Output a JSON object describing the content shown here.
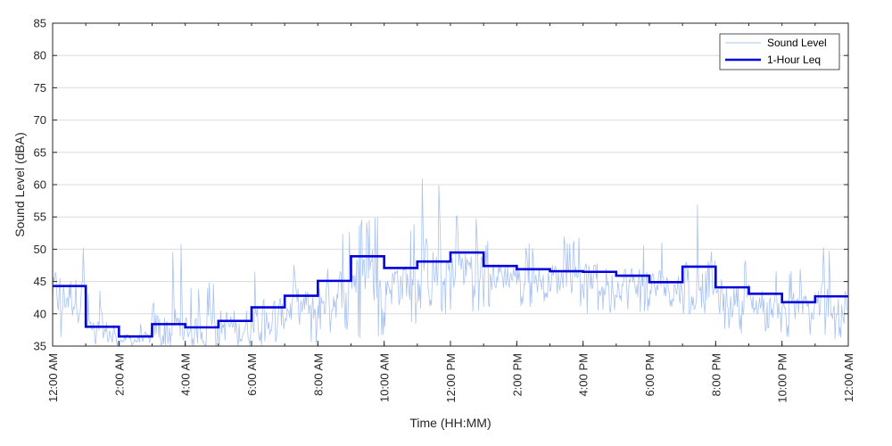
{
  "chart_data": {
    "type": "line",
    "title": "",
    "xlabel": "Time (HH:MM)",
    "ylabel": "Sound Level (dBA)",
    "xlim_hours": [
      0,
      24
    ],
    "ylim": [
      35,
      85
    ],
    "y_ticks": [
      35,
      40,
      45,
      50,
      55,
      60,
      65,
      70,
      75,
      80,
      85
    ],
    "x_ticks": [
      {
        "hour": 0,
        "label": "12:00 AM"
      },
      {
        "hour": 2,
        "label": "2:00 AM"
      },
      {
        "hour": 4,
        "label": "4:00 AM"
      },
      {
        "hour": 6,
        "label": "6:00 AM"
      },
      {
        "hour": 8,
        "label": "8:00 AM"
      },
      {
        "hour": 10,
        "label": "10:00 AM"
      },
      {
        "hour": 12,
        "label": "12:00 PM"
      },
      {
        "hour": 14,
        "label": "2:00 PM"
      },
      {
        "hour": 16,
        "label": "4:00 PM"
      },
      {
        "hour": 18,
        "label": "6:00 PM"
      },
      {
        "hour": 20,
        "label": "8:00 PM"
      },
      {
        "hour": 22,
        "label": "10:00 PM"
      },
      {
        "hour": 24,
        "label": "12:00 AM"
      }
    ],
    "grid": "horizontal",
    "legend_position": "top-right",
    "series": [
      {
        "name": "Sound Level",
        "color": "#a9c3f0",
        "style": "thin",
        "hour_ranges": [
          {
            "min": 36,
            "max": 51,
            "mean": 43
          },
          {
            "min": 35,
            "max": 44,
            "mean": 37
          },
          {
            "min": 35,
            "max": 39,
            "mean": 36
          },
          {
            "min": 35,
            "max": 51,
            "mean": 37.5
          },
          {
            "min": 35,
            "max": 45,
            "mean": 37.5
          },
          {
            "min": 35,
            "max": 47,
            "mean": 38
          },
          {
            "min": 35,
            "max": 47,
            "mean": 39.5
          },
          {
            "min": 35,
            "max": 48,
            "mean": 41
          },
          {
            "min": 37,
            "max": 53,
            "mean": 43
          },
          {
            "min": 36,
            "max": 55,
            "mean": 46
          },
          {
            "min": 38,
            "max": 54,
            "mean": 45
          },
          {
            "min": 40,
            "max": 61,
            "mean": 46
          },
          {
            "min": 40,
            "max": 56,
            "mean": 47
          },
          {
            "min": 41,
            "max": 52,
            "mean": 46
          },
          {
            "min": 41,
            "max": 51,
            "mean": 45.5
          },
          {
            "min": 41,
            "max": 52,
            "mean": 45.5
          },
          {
            "min": 40,
            "max": 52,
            "mean": 45.5
          },
          {
            "min": 40,
            "max": 51,
            "mean": 45
          },
          {
            "min": 39,
            "max": 51,
            "mean": 44
          },
          {
            "min": 40,
            "max": 58,
            "mean": 45
          },
          {
            "min": 37,
            "max": 49,
            "mean": 42.5
          },
          {
            "min": 37,
            "max": 48,
            "mean": 41.5
          },
          {
            "min": 36,
            "max": 47,
            "mean": 40.5
          },
          {
            "min": 36,
            "max": 51,
            "mean": 41.5
          }
        ]
      },
      {
        "name": "1-Hour Leq",
        "color": "#0000dd",
        "style": "step",
        "hour_start": [
          0,
          1,
          2,
          3,
          4,
          5,
          6,
          7,
          8,
          9,
          10,
          11,
          12,
          13,
          14,
          15,
          16,
          17,
          18,
          19,
          20,
          21,
          22,
          23
        ],
        "values": [
          44.3,
          38.0,
          36.5,
          38.4,
          37.9,
          38.9,
          41.0,
          42.8,
          45.1,
          48.9,
          47.1,
          48.1,
          49.5,
          47.4,
          46.9,
          46.6,
          46.5,
          45.9,
          44.9,
          47.3,
          44.1,
          43.1,
          41.8,
          42.7
        ]
      }
    ]
  }
}
